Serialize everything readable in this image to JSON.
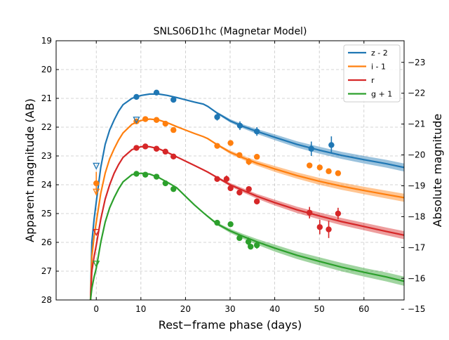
{
  "chart_data": {
    "type": "line",
    "title": "SNLS06D1hc (Magnetar Model)",
    "xlabel": "Rest−frame phase (days)",
    "ylabel": "Apparent magnitude (AB)",
    "y2label": "Absolute magnitude",
    "xlim": [
      -9,
      69
    ],
    "ylim": [
      28,
      19
    ],
    "y2lim": [
      -15.3,
      -23.7
    ],
    "x_ticks": [
      0,
      10,
      20,
      30,
      40,
      50,
      60
    ],
    "y_ticks": [
      19,
      20,
      21,
      22,
      23,
      24,
      25,
      26,
      27,
      28
    ],
    "y2_ticks": [
      -15,
      -16,
      -17,
      -18,
      -19,
      -20,
      -21,
      -22,
      -23
    ],
    "grid": true,
    "legend_position": "top-right",
    "series": [
      {
        "name": "z - 2",
        "color": "#1f77b4",
        "model": [
          [
            -1.3,
            28
          ],
          [
            -1,
            26
          ],
          [
            -0.5,
            25.2
          ],
          [
            0,
            24.6
          ],
          [
            1,
            23.4
          ],
          [
            2,
            22.6
          ],
          [
            3,
            22.1
          ],
          [
            4,
            21.75
          ],
          [
            5,
            21.45
          ],
          [
            6,
            21.22
          ],
          [
            8,
            21.0
          ],
          [
            10,
            20.9
          ],
          [
            12,
            20.85
          ],
          [
            14,
            20.85
          ],
          [
            16,
            20.9
          ],
          [
            18,
            20.97
          ],
          [
            20,
            21.05
          ],
          [
            22,
            21.13
          ],
          [
            24,
            21.2
          ],
          [
            25,
            21.28
          ],
          [
            27,
            21.5
          ],
          [
            30,
            21.78
          ],
          [
            33,
            21.98
          ],
          [
            36,
            22.15
          ],
          [
            40,
            22.35
          ],
          [
            45,
            22.6
          ],
          [
            50,
            22.8
          ],
          [
            55,
            22.98
          ],
          [
            60,
            23.13
          ],
          [
            65,
            23.27
          ],
          [
            69,
            23.4
          ]
        ],
        "band": [
          [
            25,
            0.02
          ],
          [
            30,
            0.06
          ],
          [
            40,
            0.1
          ],
          [
            50,
            0.12
          ],
          [
            60,
            0.13
          ],
          [
            69,
            0.14
          ]
        ],
        "points": [
          {
            "x": 9,
            "y": 20.95,
            "err": 0.05
          },
          {
            "x": 13.5,
            "y": 20.8,
            "err": 0.05
          },
          {
            "x": 17.3,
            "y": 21.05,
            "err": 0.06
          },
          {
            "x": 27.1,
            "y": 21.65,
            "err": 0.12
          },
          {
            "x": 32.2,
            "y": 21.95,
            "err": 0.15
          },
          {
            "x": 36,
            "y": 22.15,
            "err": 0.15
          },
          {
            "x": 48.2,
            "y": 22.75,
            "err": 0.25
          },
          {
            "x": 52.7,
            "y": 22.62,
            "err": 0.3
          }
        ],
        "limits": [
          {
            "x": 0,
            "y": 23.35
          },
          {
            "x": 9,
            "y": 21.75
          }
        ]
      },
      {
        "name": "i - 1",
        "color": "#ff7f0e",
        "model": [
          [
            -1.3,
            28
          ],
          [
            -1,
            26.5
          ],
          [
            -0.5,
            25.8
          ],
          [
            0,
            25.3
          ],
          [
            1,
            24.3
          ],
          [
            2,
            23.6
          ],
          [
            3,
            23.1
          ],
          [
            4,
            22.75
          ],
          [
            5,
            22.45
          ],
          [
            6,
            22.2
          ],
          [
            8,
            21.9
          ],
          [
            10,
            21.77
          ],
          [
            12,
            21.72
          ],
          [
            14,
            21.75
          ],
          [
            16,
            21.85
          ],
          [
            18,
            21.98
          ],
          [
            20,
            22.1
          ],
          [
            22,
            22.22
          ],
          [
            24,
            22.33
          ],
          [
            25,
            22.4
          ],
          [
            27,
            22.6
          ],
          [
            30,
            22.87
          ],
          [
            33,
            23.07
          ],
          [
            36,
            23.25
          ],
          [
            40,
            23.45
          ],
          [
            45,
            23.68
          ],
          [
            50,
            23.88
          ],
          [
            55,
            24.05
          ],
          [
            60,
            24.2
          ],
          [
            65,
            24.34
          ],
          [
            69,
            24.45
          ]
        ],
        "band": [
          [
            25,
            0.02
          ],
          [
            30,
            0.06
          ],
          [
            40,
            0.1
          ],
          [
            50,
            0.12
          ],
          [
            60,
            0.13
          ],
          [
            69,
            0.14
          ]
        ],
        "points": [
          {
            "x": 0,
            "y": 23.95,
            "err": 0.4
          },
          {
            "x": 9,
            "y": 21.8,
            "err": 0.04
          },
          {
            "x": 11,
            "y": 21.72,
            "err": 0.04
          },
          {
            "x": 13.5,
            "y": 21.75,
            "err": 0.04
          },
          {
            "x": 15.5,
            "y": 21.88,
            "err": 0.04
          },
          {
            "x": 17.3,
            "y": 22.1,
            "err": 0.05
          },
          {
            "x": 27.1,
            "y": 22.65,
            "err": 0.06
          },
          {
            "x": 30.1,
            "y": 22.55,
            "err": 0.06
          },
          {
            "x": 32.1,
            "y": 22.97,
            "err": 0.07
          },
          {
            "x": 34.2,
            "y": 23.2,
            "err": 0.12
          },
          {
            "x": 36,
            "y": 23.03,
            "err": 0.08
          },
          {
            "x": 47.8,
            "y": 23.33,
            "err": 0.08
          },
          {
            "x": 50.1,
            "y": 23.4,
            "err": 0.08
          },
          {
            "x": 52.1,
            "y": 23.53,
            "err": 0.08
          },
          {
            "x": 54.2,
            "y": 23.6,
            "err": 0.08
          }
        ],
        "limits": [
          {
            "x": 0,
            "y": 24.25
          }
        ]
      },
      {
        "name": "r",
        "color": "#d62728",
        "model": [
          [
            -1.3,
            28
          ],
          [
            -1,
            27.0
          ],
          [
            -0.5,
            26.5
          ],
          [
            0,
            26.1
          ],
          [
            1,
            25.2
          ],
          [
            2,
            24.5
          ],
          [
            3,
            24.0
          ],
          [
            4,
            23.6
          ],
          [
            5,
            23.3
          ],
          [
            6,
            23.05
          ],
          [
            8,
            22.78
          ],
          [
            10,
            22.68
          ],
          [
            12,
            22.68
          ],
          [
            14,
            22.75
          ],
          [
            16,
            22.88
          ],
          [
            18,
            23.03
          ],
          [
            20,
            23.18
          ],
          [
            22,
            23.33
          ],
          [
            24,
            23.48
          ],
          [
            25,
            23.56
          ],
          [
            27,
            23.74
          ],
          [
            30,
            24.0
          ],
          [
            33,
            24.2
          ],
          [
            36,
            24.4
          ],
          [
            40,
            24.62
          ],
          [
            45,
            24.87
          ],
          [
            50,
            25.08
          ],
          [
            55,
            25.28
          ],
          [
            60,
            25.45
          ],
          [
            65,
            25.62
          ],
          [
            69,
            25.75
          ]
        ],
        "band": [
          [
            25,
            0.02
          ],
          [
            30,
            0.06
          ],
          [
            40,
            0.1
          ],
          [
            50,
            0.12
          ],
          [
            60,
            0.13
          ],
          [
            69,
            0.14
          ]
        ],
        "points": [
          {
            "x": 9,
            "y": 22.72,
            "err": 0.04
          },
          {
            "x": 11,
            "y": 22.67,
            "err": 0.04
          },
          {
            "x": 13.5,
            "y": 22.75,
            "err": 0.04
          },
          {
            "x": 15.5,
            "y": 22.85,
            "err": 0.04
          },
          {
            "x": 17.3,
            "y": 23.02,
            "err": 0.05
          },
          {
            "x": 27.1,
            "y": 23.8,
            "err": 0.08
          },
          {
            "x": 29.2,
            "y": 23.8,
            "err": 0.12
          },
          {
            "x": 30.1,
            "y": 24.12,
            "err": 0.1
          },
          {
            "x": 32.1,
            "y": 24.27,
            "err": 0.1
          },
          {
            "x": 34.2,
            "y": 24.15,
            "err": 0.1
          },
          {
            "x": 36,
            "y": 24.58,
            "err": 0.1
          },
          {
            "x": 47.8,
            "y": 24.97,
            "err": 0.2
          },
          {
            "x": 50.1,
            "y": 25.47,
            "err": 0.25
          },
          {
            "x": 52.1,
            "y": 25.55,
            "err": 0.3
          },
          {
            "x": 54.2,
            "y": 25.0,
            "err": 0.2
          }
        ],
        "limits": [
          {
            "x": 0,
            "y": 25.65
          }
        ]
      },
      {
        "name": "g + 1",
        "color": "#2ca02c",
        "model": [
          [
            -1.3,
            28
          ],
          [
            -1,
            27.6
          ],
          [
            -0.5,
            27.2
          ],
          [
            0,
            26.9
          ],
          [
            1,
            26.0
          ],
          [
            2,
            25.3
          ],
          [
            3,
            24.8
          ],
          [
            4,
            24.45
          ],
          [
            5,
            24.15
          ],
          [
            6,
            23.9
          ],
          [
            8,
            23.65
          ],
          [
            10,
            23.6
          ],
          [
            12,
            23.63
          ],
          [
            14,
            23.75
          ],
          [
            16,
            23.92
          ],
          [
            18,
            24.1
          ],
          [
            20,
            24.4
          ],
          [
            22,
            24.7
          ],
          [
            24,
            24.97
          ],
          [
            25,
            25.1
          ],
          [
            27,
            25.35
          ],
          [
            30,
            25.6
          ],
          [
            33,
            25.8
          ],
          [
            36,
            25.98
          ],
          [
            40,
            26.2
          ],
          [
            45,
            26.45
          ],
          [
            50,
            26.66
          ],
          [
            55,
            26.86
          ],
          [
            60,
            27.04
          ],
          [
            65,
            27.2
          ],
          [
            69,
            27.35
          ]
        ],
        "band": [
          [
            24,
            0.02
          ],
          [
            30,
            0.07
          ],
          [
            40,
            0.12
          ],
          [
            50,
            0.14
          ],
          [
            60,
            0.15
          ],
          [
            69,
            0.16
          ]
        ],
        "points": [
          {
            "x": 9,
            "y": 23.62,
            "err": 0.04
          },
          {
            "x": 11,
            "y": 23.65,
            "err": 0.04
          },
          {
            "x": 13.5,
            "y": 23.72,
            "err": 0.05
          },
          {
            "x": 15.5,
            "y": 23.95,
            "err": 0.05
          },
          {
            "x": 17.3,
            "y": 24.15,
            "err": 0.06
          },
          {
            "x": 27.1,
            "y": 25.32,
            "err": 0.06
          },
          {
            "x": 30.1,
            "y": 25.37,
            "err": 0.06
          },
          {
            "x": 32.1,
            "y": 25.85,
            "err": 0.07
          },
          {
            "x": 34.1,
            "y": 25.98,
            "err": 0.15
          },
          {
            "x": 34.6,
            "y": 26.15,
            "err": 0.08
          },
          {
            "x": 36,
            "y": 26.1,
            "err": 0.12
          }
        ],
        "limits": [
          {
            "x": 0,
            "y": 26.75
          }
        ]
      }
    ]
  }
}
